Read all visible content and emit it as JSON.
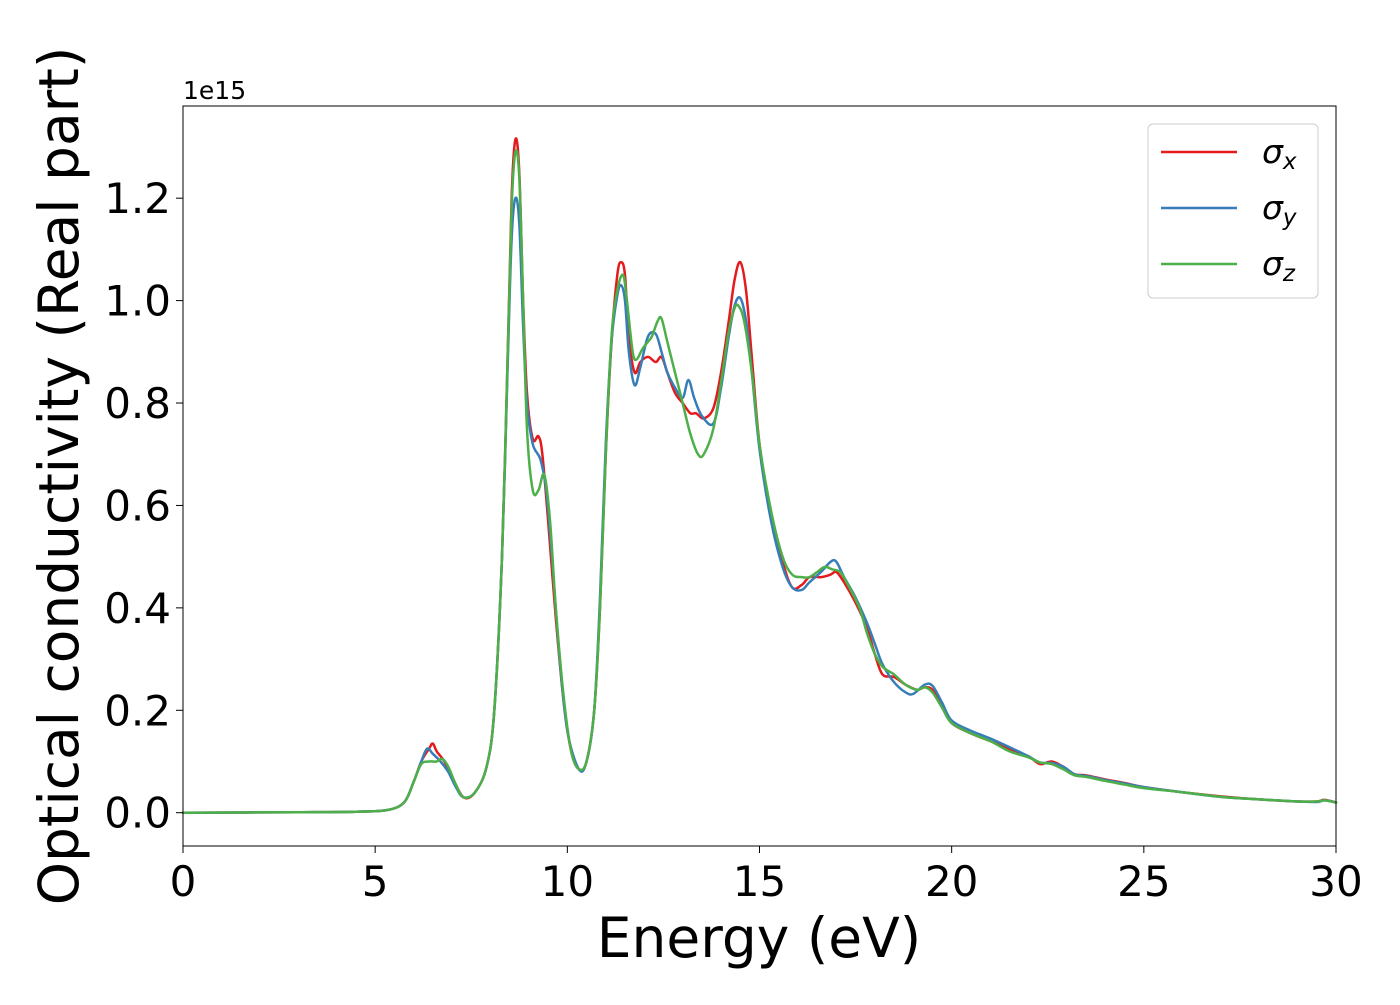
{
  "chart_data": {
    "type": "line",
    "xlabel": "Energy (eV)",
    "ylabel": "Optical conductivity (Real part)",
    "y_offset_label": "1e15",
    "xlim": [
      0,
      30
    ],
    "ylim": [
      -0.065,
      1.38
    ],
    "xticks": [
      0,
      5,
      10,
      15,
      20,
      25,
      30
    ],
    "xtick_labels": [
      "0",
      "5",
      "10",
      "15",
      "20",
      "25",
      "30"
    ],
    "yticks": [
      0.0,
      0.2,
      0.4,
      0.6,
      0.8,
      1.0,
      1.2
    ],
    "ytick_labels": [
      "0.0",
      "0.2",
      "0.4",
      "0.6",
      "0.8",
      "1.0",
      "1.2"
    ],
    "grid": false,
    "legend_position": "top-right",
    "series": [
      {
        "name": "σx",
        "name_base": "σ",
        "name_sub": "x",
        "color": "#e41a1c",
        "points": [
          [
            0,
            0
          ],
          [
            3,
            0.001
          ],
          [
            4.5,
            0.002
          ],
          [
            5.3,
            0.005
          ],
          [
            5.75,
            0.02
          ],
          [
            6.0,
            0.06
          ],
          [
            6.2,
            0.1
          ],
          [
            6.4,
            0.125
          ],
          [
            6.5,
            0.135
          ],
          [
            6.6,
            0.12
          ],
          [
            6.8,
            0.1
          ],
          [
            7.0,
            0.07
          ],
          [
            7.3,
            0.03
          ],
          [
            7.6,
            0.04
          ],
          [
            7.9,
            0.09
          ],
          [
            8.1,
            0.2
          ],
          [
            8.3,
            0.5
          ],
          [
            8.45,
            0.9
          ],
          [
            8.55,
            1.2
          ],
          [
            8.65,
            1.315
          ],
          [
            8.75,
            1.25
          ],
          [
            8.85,
            1.0
          ],
          [
            8.95,
            0.82
          ],
          [
            9.1,
            0.73
          ],
          [
            9.25,
            0.735
          ],
          [
            9.35,
            0.7
          ],
          [
            9.5,
            0.57
          ],
          [
            9.7,
            0.38
          ],
          [
            9.9,
            0.22
          ],
          [
            10.1,
            0.12
          ],
          [
            10.3,
            0.085
          ],
          [
            10.5,
            0.1
          ],
          [
            10.7,
            0.2
          ],
          [
            10.85,
            0.4
          ],
          [
            11.0,
            0.7
          ],
          [
            11.15,
            0.92
          ],
          [
            11.3,
            1.05
          ],
          [
            11.4,
            1.075
          ],
          [
            11.5,
            1.05
          ],
          [
            11.6,
            0.93
          ],
          [
            11.75,
            0.86
          ],
          [
            11.9,
            0.88
          ],
          [
            12.1,
            0.89
          ],
          [
            12.3,
            0.88
          ],
          [
            12.45,
            0.89
          ],
          [
            12.6,
            0.86
          ],
          [
            12.8,
            0.82
          ],
          [
            13.0,
            0.8
          ],
          [
            13.2,
            0.78
          ],
          [
            13.35,
            0.78
          ],
          [
            13.55,
            0.77
          ],
          [
            13.8,
            0.79
          ],
          [
            14.0,
            0.86
          ],
          [
            14.2,
            0.96
          ],
          [
            14.35,
            1.04
          ],
          [
            14.5,
            1.075
          ],
          [
            14.65,
            1.02
          ],
          [
            14.8,
            0.89
          ],
          [
            15.0,
            0.72
          ],
          [
            15.3,
            0.58
          ],
          [
            15.6,
            0.49
          ],
          [
            15.85,
            0.44
          ],
          [
            16.1,
            0.445
          ],
          [
            16.3,
            0.46
          ],
          [
            16.6,
            0.46
          ],
          [
            16.85,
            0.465
          ],
          [
            17.0,
            0.47
          ],
          [
            17.2,
            0.45
          ],
          [
            17.5,
            0.41
          ],
          [
            17.8,
            0.36
          ],
          [
            18.0,
            0.31
          ],
          [
            18.2,
            0.27
          ],
          [
            18.5,
            0.265
          ],
          [
            18.8,
            0.25
          ],
          [
            19.1,
            0.24
          ],
          [
            19.3,
            0.245
          ],
          [
            19.5,
            0.24
          ],
          [
            19.75,
            0.21
          ],
          [
            20.0,
            0.175
          ],
          [
            20.5,
            0.155
          ],
          [
            21.0,
            0.14
          ],
          [
            21.5,
            0.125
          ],
          [
            22.0,
            0.11
          ],
          [
            22.3,
            0.095
          ],
          [
            22.6,
            0.1
          ],
          [
            22.9,
            0.09
          ],
          [
            23.2,
            0.075
          ],
          [
            23.5,
            0.073
          ],
          [
            24,
            0.065
          ],
          [
            24.5,
            0.058
          ],
          [
            25,
            0.05
          ],
          [
            26,
            0.04
          ],
          [
            27,
            0.032
          ],
          [
            28,
            0.026
          ],
          [
            29,
            0.022
          ],
          [
            29.5,
            0.022
          ],
          [
            29.7,
            0.025
          ],
          [
            30,
            0.02
          ]
        ]
      },
      {
        "name": "σy",
        "name_base": "σ",
        "name_sub": "y",
        "color": "#377eb8",
        "points": [
          [
            0,
            0
          ],
          [
            3,
            0.001
          ],
          [
            4.5,
            0.002
          ],
          [
            5.3,
            0.005
          ],
          [
            5.75,
            0.02
          ],
          [
            6.0,
            0.06
          ],
          [
            6.2,
            0.1
          ],
          [
            6.35,
            0.125
          ],
          [
            6.5,
            0.115
          ],
          [
            6.7,
            0.1
          ],
          [
            6.9,
            0.08
          ],
          [
            7.1,
            0.05
          ],
          [
            7.3,
            0.03
          ],
          [
            7.6,
            0.04
          ],
          [
            7.9,
            0.09
          ],
          [
            8.1,
            0.2
          ],
          [
            8.3,
            0.5
          ],
          [
            8.45,
            0.88
          ],
          [
            8.55,
            1.12
          ],
          [
            8.65,
            1.2
          ],
          [
            8.75,
            1.15
          ],
          [
            8.85,
            0.95
          ],
          [
            8.95,
            0.8
          ],
          [
            9.1,
            0.72
          ],
          [
            9.3,
            0.69
          ],
          [
            9.45,
            0.63
          ],
          [
            9.6,
            0.5
          ],
          [
            9.8,
            0.3
          ],
          [
            10.0,
            0.16
          ],
          [
            10.3,
            0.085
          ],
          [
            10.5,
            0.1
          ],
          [
            10.7,
            0.2
          ],
          [
            10.85,
            0.42
          ],
          [
            11.0,
            0.72
          ],
          [
            11.15,
            0.92
          ],
          [
            11.3,
            1.01
          ],
          [
            11.4,
            1.03
          ],
          [
            11.5,
            1.0
          ],
          [
            11.6,
            0.9
          ],
          [
            11.75,
            0.835
          ],
          [
            11.9,
            0.87
          ],
          [
            12.1,
            0.93
          ],
          [
            12.3,
            0.935
          ],
          [
            12.45,
            0.9
          ],
          [
            12.6,
            0.86
          ],
          [
            12.8,
            0.83
          ],
          [
            13.0,
            0.81
          ],
          [
            13.15,
            0.845
          ],
          [
            13.3,
            0.81
          ],
          [
            13.5,
            0.775
          ],
          [
            13.8,
            0.76
          ],
          [
            14.0,
            0.83
          ],
          [
            14.2,
            0.93
          ],
          [
            14.35,
            0.99
          ],
          [
            14.5,
            1.005
          ],
          [
            14.65,
            0.96
          ],
          [
            14.8,
            0.86
          ],
          [
            15.0,
            0.71
          ],
          [
            15.3,
            0.57
          ],
          [
            15.6,
            0.48
          ],
          [
            15.85,
            0.44
          ],
          [
            16.1,
            0.435
          ],
          [
            16.3,
            0.45
          ],
          [
            16.6,
            0.47
          ],
          [
            16.85,
            0.49
          ],
          [
            17.0,
            0.49
          ],
          [
            17.2,
            0.46
          ],
          [
            17.5,
            0.42
          ],
          [
            17.8,
            0.37
          ],
          [
            18.0,
            0.33
          ],
          [
            18.2,
            0.29
          ],
          [
            18.5,
            0.255
          ],
          [
            18.8,
            0.235
          ],
          [
            19.0,
            0.232
          ],
          [
            19.3,
            0.25
          ],
          [
            19.5,
            0.248
          ],
          [
            19.75,
            0.215
          ],
          [
            20.0,
            0.18
          ],
          [
            20.5,
            0.16
          ],
          [
            21.0,
            0.145
          ],
          [
            21.5,
            0.128
          ],
          [
            22.0,
            0.11
          ],
          [
            22.3,
            0.098
          ],
          [
            22.6,
            0.097
          ],
          [
            22.9,
            0.09
          ],
          [
            23.2,
            0.075
          ],
          [
            23.5,
            0.072
          ],
          [
            24,
            0.064
          ],
          [
            24.5,
            0.057
          ],
          [
            25,
            0.05
          ],
          [
            26,
            0.04
          ],
          [
            27,
            0.031
          ],
          [
            28,
            0.026
          ],
          [
            29,
            0.022
          ],
          [
            29.5,
            0.021
          ],
          [
            29.7,
            0.024
          ],
          [
            30,
            0.02
          ]
        ]
      },
      {
        "name": "σz",
        "name_base": "σ",
        "name_sub": "z",
        "color": "#4daf4a",
        "points": [
          [
            0,
            0
          ],
          [
            3,
            0.001
          ],
          [
            4.5,
            0.002
          ],
          [
            5.3,
            0.005
          ],
          [
            5.75,
            0.02
          ],
          [
            6.0,
            0.06
          ],
          [
            6.2,
            0.095
          ],
          [
            6.4,
            0.1
          ],
          [
            6.6,
            0.1
          ],
          [
            6.75,
            0.105
          ],
          [
            6.9,
            0.09
          ],
          [
            7.1,
            0.055
          ],
          [
            7.3,
            0.03
          ],
          [
            7.6,
            0.04
          ],
          [
            7.9,
            0.09
          ],
          [
            8.1,
            0.2
          ],
          [
            8.3,
            0.5
          ],
          [
            8.45,
            0.9
          ],
          [
            8.55,
            1.18
          ],
          [
            8.65,
            1.29
          ],
          [
            8.75,
            1.24
          ],
          [
            8.85,
            1.0
          ],
          [
            8.95,
            0.75
          ],
          [
            9.1,
            0.63
          ],
          [
            9.25,
            0.63
          ],
          [
            9.4,
            0.66
          ],
          [
            9.55,
            0.57
          ],
          [
            9.7,
            0.4
          ],
          [
            9.9,
            0.23
          ],
          [
            10.1,
            0.12
          ],
          [
            10.3,
            0.085
          ],
          [
            10.5,
            0.1
          ],
          [
            10.7,
            0.2
          ],
          [
            10.85,
            0.4
          ],
          [
            11.0,
            0.7
          ],
          [
            11.15,
            0.93
          ],
          [
            11.3,
            1.02
          ],
          [
            11.45,
            1.05
          ],
          [
            11.55,
            1.0
          ],
          [
            11.7,
            0.9
          ],
          [
            11.8,
            0.885
          ],
          [
            11.95,
            0.905
          ],
          [
            12.1,
            0.92
          ],
          [
            12.2,
            0.93
          ],
          [
            12.35,
            0.96
          ],
          [
            12.45,
            0.965
          ],
          [
            12.6,
            0.92
          ],
          [
            12.8,
            0.86
          ],
          [
            13.0,
            0.8
          ],
          [
            13.2,
            0.74
          ],
          [
            13.4,
            0.7
          ],
          [
            13.55,
            0.7
          ],
          [
            13.8,
            0.75
          ],
          [
            14.0,
            0.84
          ],
          [
            14.2,
            0.94
          ],
          [
            14.35,
            0.985
          ],
          [
            14.45,
            0.99
          ],
          [
            14.6,
            0.96
          ],
          [
            14.8,
            0.86
          ],
          [
            15.0,
            0.72
          ],
          [
            15.3,
            0.59
          ],
          [
            15.6,
            0.5
          ],
          [
            15.85,
            0.465
          ],
          [
            16.1,
            0.46
          ],
          [
            16.3,
            0.46
          ],
          [
            16.5,
            0.47
          ],
          [
            16.7,
            0.48
          ],
          [
            16.9,
            0.475
          ],
          [
            17.1,
            0.47
          ],
          [
            17.3,
            0.445
          ],
          [
            17.6,
            0.4
          ],
          [
            17.8,
            0.35
          ],
          [
            18.0,
            0.31
          ],
          [
            18.2,
            0.285
          ],
          [
            18.5,
            0.27
          ],
          [
            18.8,
            0.25
          ],
          [
            19.1,
            0.24
          ],
          [
            19.3,
            0.245
          ],
          [
            19.5,
            0.235
          ],
          [
            19.75,
            0.205
          ],
          [
            20.0,
            0.175
          ],
          [
            20.5,
            0.155
          ],
          [
            21.0,
            0.14
          ],
          [
            21.5,
            0.12
          ],
          [
            22.0,
            0.108
          ],
          [
            22.3,
            0.098
          ],
          [
            22.6,
            0.095
          ],
          [
            22.9,
            0.085
          ],
          [
            23.2,
            0.073
          ],
          [
            23.5,
            0.07
          ],
          [
            24,
            0.062
          ],
          [
            24.5,
            0.055
          ],
          [
            25,
            0.048
          ],
          [
            26,
            0.04
          ],
          [
            27,
            0.031
          ],
          [
            28,
            0.026
          ],
          [
            29,
            0.022
          ],
          [
            29.5,
            0.022
          ],
          [
            29.7,
            0.024
          ],
          [
            30,
            0.02
          ]
        ]
      }
    ]
  }
}
